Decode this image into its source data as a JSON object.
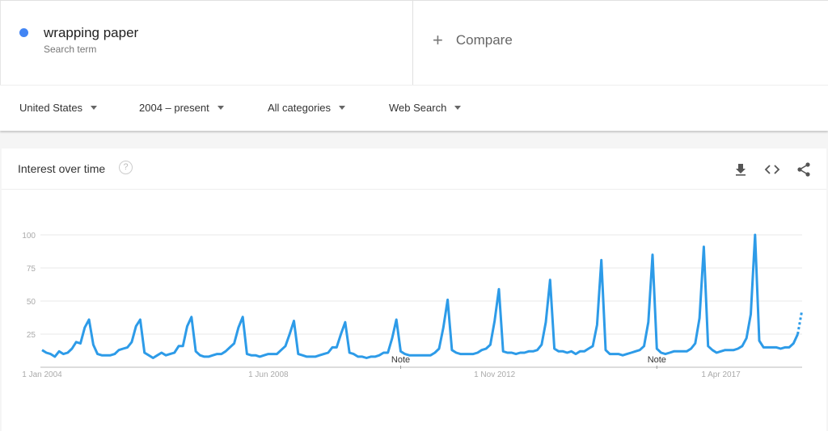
{
  "search_term": {
    "name": "wrapping paper",
    "subtitle": "Search term",
    "color": "#4285f4"
  },
  "compare": {
    "icon": "plus-icon",
    "label": "Compare"
  },
  "filters": [
    {
      "label": "United States"
    },
    {
      "label": "2004 – present"
    },
    {
      "label": "All categories"
    },
    {
      "label": "Web Search"
    }
  ],
  "card": {
    "title": "Interest over time",
    "help_icon": "?",
    "actions": [
      "download-icon",
      "embed-icon",
      "share-icon"
    ]
  },
  "chart_data": {
    "type": "line",
    "x_start": "2004-01",
    "x_end": "2018-11",
    "x_frequency": "monthly",
    "x_tick_labels": [
      "1 Jan 2004",
      "1 Jun 2008",
      "1 Nov 2012",
      "1 Apr 2017"
    ],
    "y_ticks": [
      25,
      50,
      75,
      100
    ],
    "ylim": [
      0,
      100
    ],
    "grid": true,
    "line_color": "#2d9be8",
    "notes": [
      {
        "label": "Note",
        "date": "2011-01"
      },
      {
        "label": "Note",
        "date": "2016-01"
      }
    ],
    "partial_last_point": true,
    "values": [
      13,
      11,
      10,
      8,
      12,
      10,
      11,
      14,
      19,
      18,
      30,
      36,
      17,
      10,
      9,
      9,
      9,
      10,
      13,
      14,
      15,
      19,
      31,
      36,
      11,
      9,
      7,
      9,
      11,
      9,
      10,
      11,
      16,
      16,
      31,
      38,
      12,
      9,
      8,
      8,
      9,
      10,
      10,
      12,
      15,
      18,
      30,
      38,
      10,
      9,
      9,
      8,
      9,
      10,
      10,
      10,
      13,
      16,
      25,
      35,
      10,
      9,
      8,
      8,
      8,
      9,
      10,
      11,
      15,
      15,
      25,
      34,
      11,
      10,
      8,
      8,
      7,
      8,
      8,
      9,
      11,
      11,
      22,
      36,
      12,
      10,
      9,
      9,
      9,
      9,
      9,
      9,
      11,
      14,
      30,
      51,
      13,
      11,
      10,
      10,
      10,
      10,
      11,
      13,
      14,
      17,
      35,
      59,
      12,
      11,
      11,
      10,
      11,
      11,
      12,
      12,
      13,
      17,
      34,
      66,
      14,
      12,
      12,
      11,
      12,
      10,
      12,
      12,
      14,
      16,
      32,
      81,
      13,
      10,
      10,
      10,
      9,
      10,
      11,
      12,
      13,
      16,
      34,
      85,
      14,
      11,
      10,
      11,
      12,
      12,
      12,
      12,
      14,
      18,
      37,
      91,
      16,
      13,
      11,
      12,
      13,
      13,
      13,
      14,
      16,
      22,
      40,
      100,
      20,
      15,
      15,
      15,
      15,
      14,
      15,
      15,
      18,
      25,
      43
    ]
  }
}
